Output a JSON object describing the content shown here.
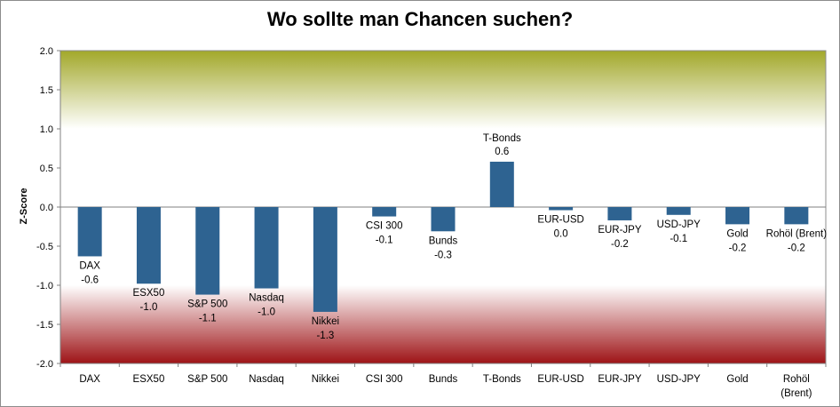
{
  "chart_data": {
    "type": "bar",
    "title": "Wo sollte man Chancen suchen?",
    "xlabel": "",
    "ylabel": "Z-Score",
    "ylim": [
      -2.0,
      2.0
    ],
    "yticks": [
      "2.0",
      "1.5",
      "1.0",
      "0.5",
      "0.0",
      "-0.5",
      "-1.0",
      "-1.5",
      "-2.0"
    ],
    "grid": false,
    "legend": "none",
    "bar_color": "#2e6391",
    "bands": [
      {
        "from": 1.0,
        "to": 2.0,
        "color_edge": "#a2a82a",
        "color_fade": "#ffffff"
      },
      {
        "from": -2.0,
        "to": -1.0,
        "color_edge": "#9e1316",
        "color_fade": "#ffffff"
      }
    ],
    "categories": [
      "DAX",
      "ESX50",
      "S&P 500",
      "Nasdaq",
      "Nikkei",
      "CSI 300",
      "Bunds",
      "T-Bonds",
      "EUR-USD",
      "EUR-JPY",
      "USD-JPY",
      "Gold",
      "Rohöl (Brent)"
    ],
    "category_axis_labels": [
      [
        "DAX"
      ],
      [
        "ESX50"
      ],
      [
        "S&P 500"
      ],
      [
        "Nasdaq"
      ],
      [
        "Nikkei"
      ],
      [
        "CSI 300"
      ],
      [
        "Bunds"
      ],
      [
        "T-Bonds"
      ],
      [
        "EUR-USD"
      ],
      [
        "EUR-JPY"
      ],
      [
        "USD-JPY"
      ],
      [
        "Gold"
      ],
      [
        "Rohöl",
        "(Brent)"
      ]
    ],
    "values": [
      -0.63,
      -0.98,
      -1.12,
      -1.04,
      -1.34,
      -0.12,
      -0.31,
      0.58,
      -0.04,
      -0.17,
      -0.1,
      -0.22,
      -0.22
    ],
    "data_labels": [
      "-0.6",
      "-1.0",
      "-1.1",
      "-1.0",
      "-1.3",
      "-0.1",
      "-0.3",
      "0.6",
      "0.0",
      "-0.2",
      "-0.1",
      "-0.2",
      "-0.2"
    ]
  }
}
